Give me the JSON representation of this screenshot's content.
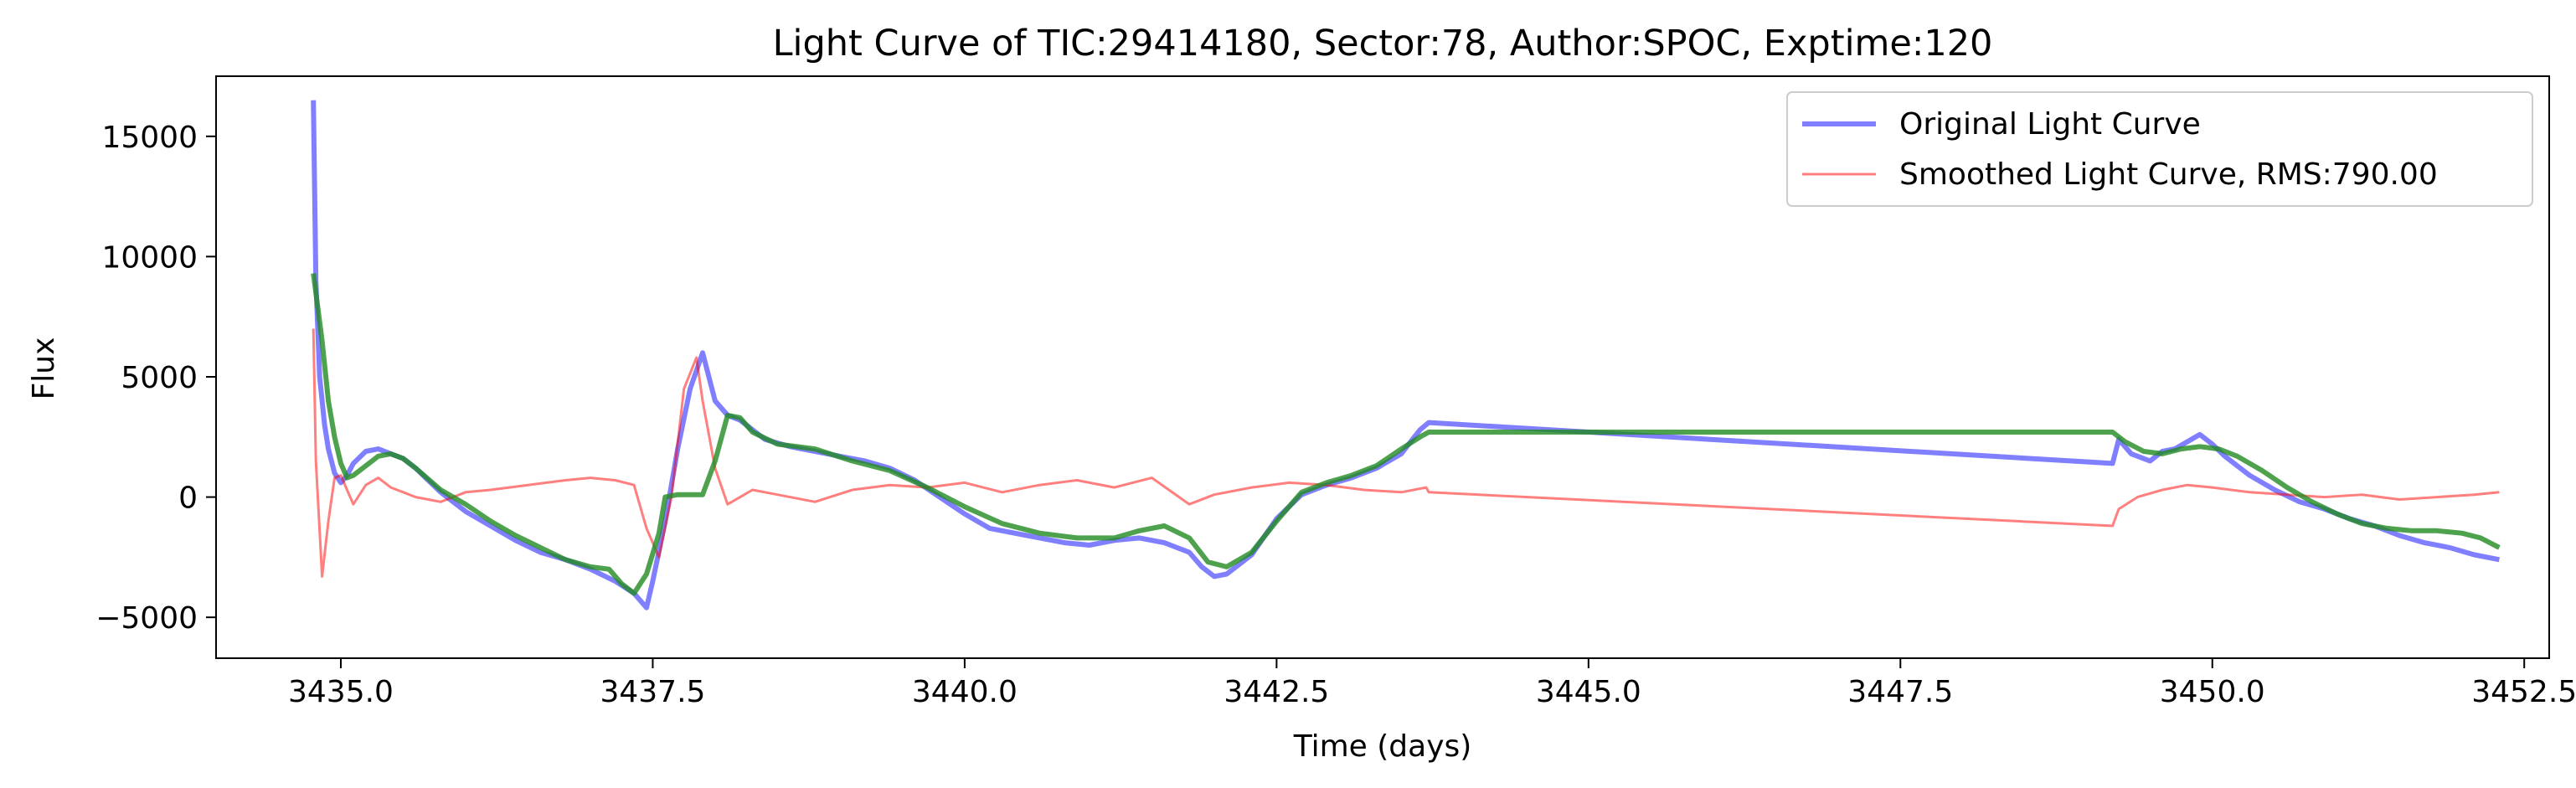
{
  "chart_data": {
    "type": "line",
    "title": "Light Curve of TIC:29414180, Sector:78, Author:SPOC, Exptime:120",
    "xlabel": "Time (days)",
    "ylabel": "Flux",
    "xlim": [
      3434.0,
      3452.7
    ],
    "ylim": [
      -6700,
      17500
    ],
    "xticks": [
      3435.0,
      3437.5,
      3440.0,
      3442.5,
      3445.0,
      3447.5,
      3450.0,
      3452.5
    ],
    "xtick_labels": [
      "3435.0",
      "3437.5",
      "3440.0",
      "3442.5",
      "3445.0",
      "3447.5",
      "3450.0",
      "3452.5"
    ],
    "yticks": [
      -5000,
      0,
      5000,
      10000,
      15000
    ],
    "ytick_labels": [
      "−5000",
      "0",
      "5000",
      "10000",
      "15000"
    ],
    "grid": false,
    "legend_placement": "top-right",
    "series": [
      {
        "name": "Original Light Curve",
        "color": "#0000ff",
        "x": [
          3434.78,
          3434.8,
          3434.83,
          3434.87,
          3434.9,
          3434.95,
          3435.0,
          3435.05,
          3435.1,
          3435.2,
          3435.3,
          3435.4,
          3435.5,
          3435.6,
          3435.7,
          3435.8,
          3435.9,
          3436.0,
          3436.2,
          3436.4,
          3436.6,
          3436.8,
          3437.0,
          3437.2,
          3437.35,
          3437.45,
          3437.5,
          3437.6,
          3437.7,
          3437.8,
          3437.9,
          3438.0,
          3438.1,
          3438.2,
          3438.3,
          3438.4,
          3438.6,
          3438.8,
          3439.0,
          3439.2,
          3439.4,
          3439.6,
          3439.8,
          3440.0,
          3440.2,
          3440.5,
          3440.8,
          3441.0,
          3441.2,
          3441.4,
          3441.6,
          3441.8,
          3441.9,
          3442.0,
          3442.1,
          3442.3,
          3442.5,
          3442.7,
          3442.9,
          3443.1,
          3443.3,
          3443.5,
          3443.65,
          3443.72,
          3449.2,
          3449.25,
          3449.35,
          3449.5,
          3449.6,
          3449.7,
          3449.8,
          3449.9,
          3450.0,
          3450.1,
          3450.3,
          3450.5,
          3450.7,
          3450.9,
          3451.1,
          3451.3,
          3451.5,
          3451.7,
          3451.9,
          3452.1,
          3452.3
        ],
        "y": [
          16500,
          9000,
          5000,
          3000,
          2000,
          1000,
          600,
          900,
          1400,
          1900,
          2000,
          1800,
          1600,
          1200,
          700,
          200,
          -200,
          -600,
          -1200,
          -1800,
          -2300,
          -2600,
          -3000,
          -3500,
          -4000,
          -4600,
          -3500,
          -1000,
          2000,
          4500,
          6000,
          4000,
          3400,
          3200,
          2800,
          2400,
          2100,
          1900,
          1700,
          1500,
          1200,
          700,
          0,
          -700,
          -1300,
          -1600,
          -1900,
          -2000,
          -1800,
          -1700,
          -1900,
          -2300,
          -2900,
          -3300,
          -3200,
          -2400,
          -900,
          100,
          500,
          800,
          1200,
          1800,
          2800,
          3100,
          1400,
          2400,
          1800,
          1500,
          1900,
          2000,
          2300,
          2600,
          2200,
          1700,
          900,
          300,
          -200,
          -500,
          -900,
          -1200,
          -1600,
          -1900,
          -2100,
          -2400,
          -2600
        ]
      },
      {
        "name": "Smoothed Light Curve, RMS:790.00",
        "color": "#ff0000",
        "x": [
          3434.78,
          3434.8,
          3434.85,
          3434.9,
          3434.95,
          3435.0,
          3435.05,
          3435.1,
          3435.2,
          3435.3,
          3435.4,
          3435.5,
          3435.6,
          3435.8,
          3436.0,
          3436.2,
          3436.5,
          3436.8,
          3437.0,
          3437.2,
          3437.35,
          3437.45,
          3437.55,
          3437.65,
          3437.75,
          3437.85,
          3437.9,
          3438.0,
          3438.1,
          3438.3,
          3438.5,
          3438.8,
          3439.1,
          3439.4,
          3439.7,
          3440.0,
          3440.3,
          3440.6,
          3440.9,
          3441.2,
          3441.5,
          3441.8,
          3442.0,
          3442.3,
          3442.6,
          3442.9,
          3443.2,
          3443.5,
          3443.7,
          3443.72,
          3449.2,
          3449.25,
          3449.4,
          3449.6,
          3449.8,
          3450.0,
          3450.3,
          3450.6,
          3450.9,
          3451.2,
          3451.5,
          3451.8,
          3452.1,
          3452.3
        ],
        "y": [
          7000,
          1500,
          -3300,
          -1000,
          800,
          900,
          300,
          -300,
          500,
          800,
          400,
          200,
          0,
          -200,
          200,
          300,
          500,
          700,
          800,
          700,
          500,
          -1300,
          -2500,
          0,
          4500,
          5800,
          4000,
          1200,
          -300,
          300,
          100,
          -200,
          300,
          500,
          400,
          600,
          200,
          500,
          700,
          400,
          800,
          -300,
          100,
          400,
          600,
          500,
          300,
          200,
          400,
          200,
          -1200,
          -500,
          0,
          300,
          500,
          400,
          200,
          100,
          0,
          100,
          -100,
          0,
          100,
          200
        ]
      },
      {
        "name": "",
        "color": "#228b22",
        "x": [
          3434.78,
          3434.85,
          3434.9,
          3434.95,
          3435.0,
          3435.05,
          3435.1,
          3435.2,
          3435.3,
          3435.4,
          3435.5,
          3435.6,
          3435.8,
          3436.0,
          3436.2,
          3436.4,
          3436.6,
          3436.8,
          3437.0,
          3437.15,
          3437.25,
          3437.35,
          3437.45,
          3437.55,
          3437.6,
          3437.7,
          3437.8,
          3437.9,
          3438.0,
          3438.1,
          3438.2,
          3438.3,
          3438.5,
          3438.8,
          3439.1,
          3439.4,
          3439.7,
          3440.0,
          3440.3,
          3440.6,
          3440.9,
          3441.2,
          3441.4,
          3441.6,
          3441.8,
          3441.95,
          3442.1,
          3442.3,
          3442.5,
          3442.7,
          3442.9,
          3443.1,
          3443.3,
          3443.5,
          3443.65,
          3443.72,
          3449.2,
          3449.3,
          3449.45,
          3449.6,
          3449.75,
          3449.9,
          3450.05,
          3450.2,
          3450.4,
          3450.6,
          3450.8,
          3451.0,
          3451.2,
          3451.4,
          3451.6,
          3451.8,
          3452.0,
          3452.15,
          3452.3
        ],
        "y": [
          9300,
          6500,
          4000,
          2500,
          1400,
          800,
          900,
          1300,
          1700,
          1800,
          1600,
          1200,
          300,
          -300,
          -1000,
          -1600,
          -2100,
          -2600,
          -2900,
          -3000,
          -3600,
          -4000,
          -3200,
          -1500,
          0,
          100,
          100,
          100,
          1500,
          3400,
          3300,
          2700,
          2200,
          2000,
          1500,
          1100,
          400,
          -400,
          -1100,
          -1500,
          -1700,
          -1700,
          -1400,
          -1200,
          -1700,
          -2700,
          -2900,
          -2300,
          -1000,
          200,
          600,
          900,
          1300,
          2000,
          2500,
          2700,
          2700,
          2300,
          1900,
          1800,
          2000,
          2100,
          2000,
          1700,
          1100,
          400,
          -200,
          -700,
          -1100,
          -1300,
          -1400,
          -1400,
          -1500,
          -1700,
          -2100
        ]
      }
    ]
  }
}
